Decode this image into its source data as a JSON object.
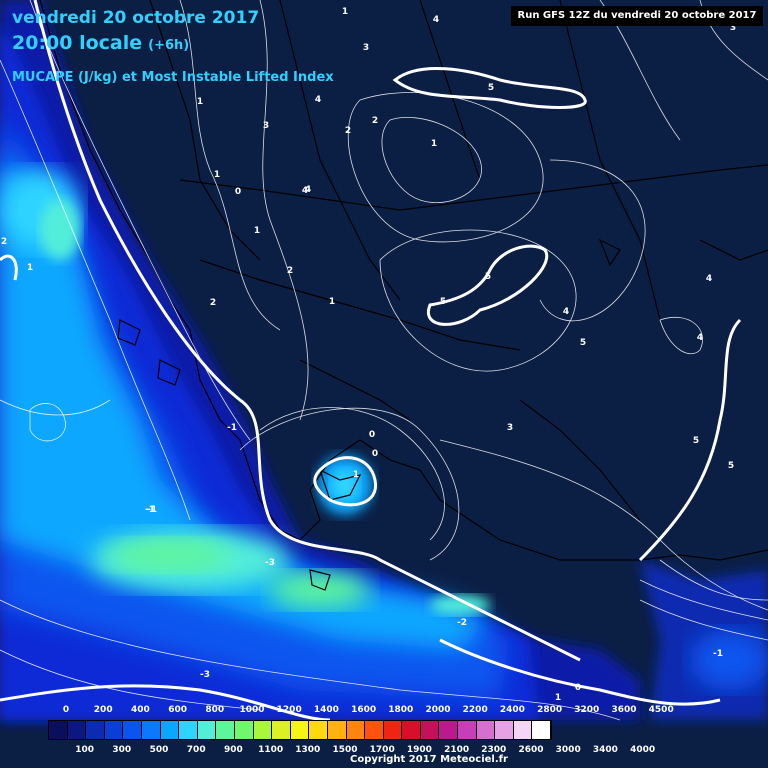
{
  "header": {
    "date_line": "vendredi 20 octobre 2017",
    "time_line": "20:00 locale",
    "offset": "(+6h)",
    "parameter": "MUCAPE (J/kg) et Most Instable Lifted Index"
  },
  "run_label": "Run GFS 12Z du vendredi 20 octobre 2017",
  "copyright": "Copyright 2017 Meteociel.fr",
  "legend": {
    "top_labels": [
      "0",
      "200",
      "400",
      "600",
      "800",
      "1000",
      "1200",
      "1400",
      "1600",
      "1800",
      "2000",
      "2200",
      "2400",
      "2800",
      "3200",
      "3600",
      "4500"
    ],
    "bottom_labels": [
      "100",
      "300",
      "500",
      "700",
      "900",
      "1100",
      "1300",
      "1500",
      "1700",
      "1900",
      "2100",
      "2300",
      "2600",
      "3000",
      "3400",
      "4000"
    ],
    "colors": [
      "#0b0e5c",
      "#0b1880",
      "#0b2bb0",
      "#0a3fd6",
      "#0a55ef",
      "#0b78ff",
      "#0aa7ff",
      "#2dd4ff",
      "#53eeda",
      "#5ef59b",
      "#6ff76d",
      "#aaf53e",
      "#dbf123",
      "#f6f412",
      "#ffd80e",
      "#ffb20e",
      "#ff860e",
      "#ff520e",
      "#f12313",
      "#d90e2a",
      "#c5115a",
      "#bb1990",
      "#c63fb8",
      "#d76fd0",
      "#e7a2e5",
      "#f5d5f5",
      "#ffffff"
    ]
  },
  "lifted_index_labels": [
    "1",
    "4",
    "3",
    "3",
    "2",
    "1",
    "4",
    "3",
    "5",
    "1",
    "2",
    "4",
    "2",
    "1",
    "0",
    "4",
    "1",
    "2",
    "1",
    "2",
    "1",
    "0",
    "-1",
    "-1",
    "5",
    "5",
    "4",
    "5",
    "4",
    "4",
    "3",
    "5",
    "5",
    "1",
    "0",
    "-3",
    "-2",
    "-3",
    "-1",
    "1",
    "0",
    "-1"
  ]
}
